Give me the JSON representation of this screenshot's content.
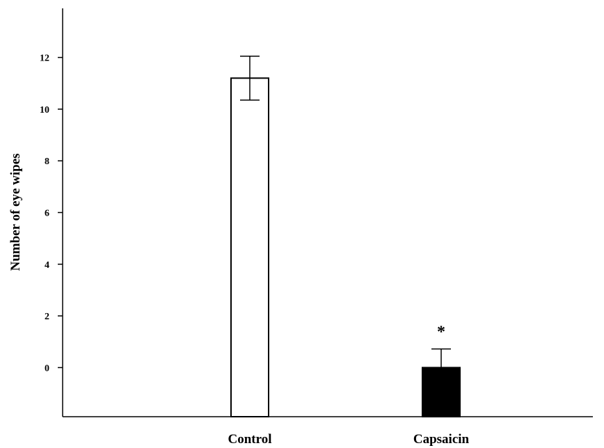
{
  "chart_data": {
    "type": "bar",
    "title": "",
    "xlabel": "",
    "ylabel": "Number of eye wipes",
    "categories": [
      "Control",
      "Capsaicin"
    ],
    "values": [
      11.2,
      0.0
    ],
    "errors": [
      0.85,
      0.72
    ],
    "bar_colors": [
      "#ffffff",
      "#000000"
    ],
    "bar_edge_color": "#000000",
    "ylim": [
      -1.9,
      13.9
    ],
    "yticks": [
      0,
      2,
      4,
      6,
      8,
      10,
      12
    ],
    "grid": false,
    "legend": "none",
    "annotations": [
      {
        "category": "Capsaicin",
        "text": "*"
      }
    ]
  }
}
